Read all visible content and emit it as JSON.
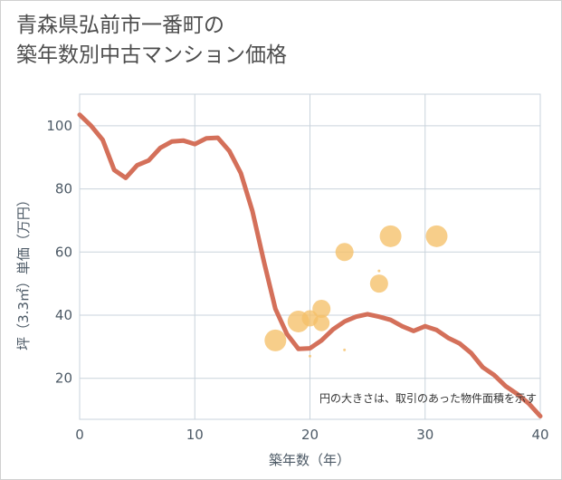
{
  "title_lines": [
    "青森県弘前市一番町の",
    "築年数別中古マンション価格"
  ],
  "chart_data": {
    "type": "scatter+line",
    "title": "青森県弘前市一番町の 築年数別中古マンション価格",
    "xlabel": "築年数（年）",
    "ylabel": "坪（3.3㎡）単価（万円）",
    "xlim": [
      0,
      40
    ],
    "ylim": [
      7,
      110
    ],
    "xticks": [
      0,
      10,
      20,
      30,
      40
    ],
    "yticks": [
      20,
      40,
      60,
      80,
      100
    ],
    "grid": true,
    "note": "円の大きさは、取引のあった物件面積を示す",
    "colors": {
      "line": "#d4705a",
      "bubble": "#f5c069",
      "grid": "#c9d3dc",
      "text": "#4d5a66"
    },
    "series": [
      {
        "name": "trend",
        "kind": "line",
        "x": [
          0,
          1,
          2,
          3,
          4,
          5,
          6,
          7,
          8,
          9,
          10,
          11,
          12,
          13,
          14,
          15,
          16,
          17,
          18,
          19,
          20,
          21,
          22,
          23,
          24,
          25,
          26,
          27,
          28,
          29,
          30,
          31,
          32,
          33,
          34,
          35,
          36,
          37,
          38,
          39,
          40
        ],
        "y": [
          103.5,
          100,
          95.5,
          86,
          83.5,
          87.5,
          89,
          93,
          95,
          95.3,
          94.2,
          96,
          96.2,
          92,
          85,
          73,
          57,
          42,
          34,
          29.3,
          29.5,
          32,
          35.5,
          38,
          39.5,
          40.3,
          39.5,
          38.5,
          36.5,
          35,
          36.5,
          35.3,
          32.8,
          31,
          28,
          23.5,
          21,
          17.5,
          15,
          12,
          8
        ]
      },
      {
        "name": "transactions",
        "kind": "bubble",
        "points": [
          {
            "x": 17,
            "y": 32,
            "size": 12
          },
          {
            "x": 19,
            "y": 38,
            "size": 12
          },
          {
            "x": 20,
            "y": 39,
            "size": 9
          },
          {
            "x": 21,
            "y": 42,
            "size": 10
          },
          {
            "x": 21,
            "y": 37.5,
            "size": 9
          },
          {
            "x": 23,
            "y": 60,
            "size": 10
          },
          {
            "x": 26,
            "y": 50,
            "size": 10
          },
          {
            "x": 27,
            "y": 65,
            "size": 12
          },
          {
            "x": 31,
            "y": 65,
            "size": 12
          },
          {
            "x": 30,
            "y": 36.5,
            "size": 2.5
          },
          {
            "x": 23,
            "y": 29,
            "size": 1.5
          },
          {
            "x": 26,
            "y": 54,
            "size": 1.5
          },
          {
            "x": 20,
            "y": 27,
            "size": 1.5
          }
        ]
      }
    ]
  }
}
